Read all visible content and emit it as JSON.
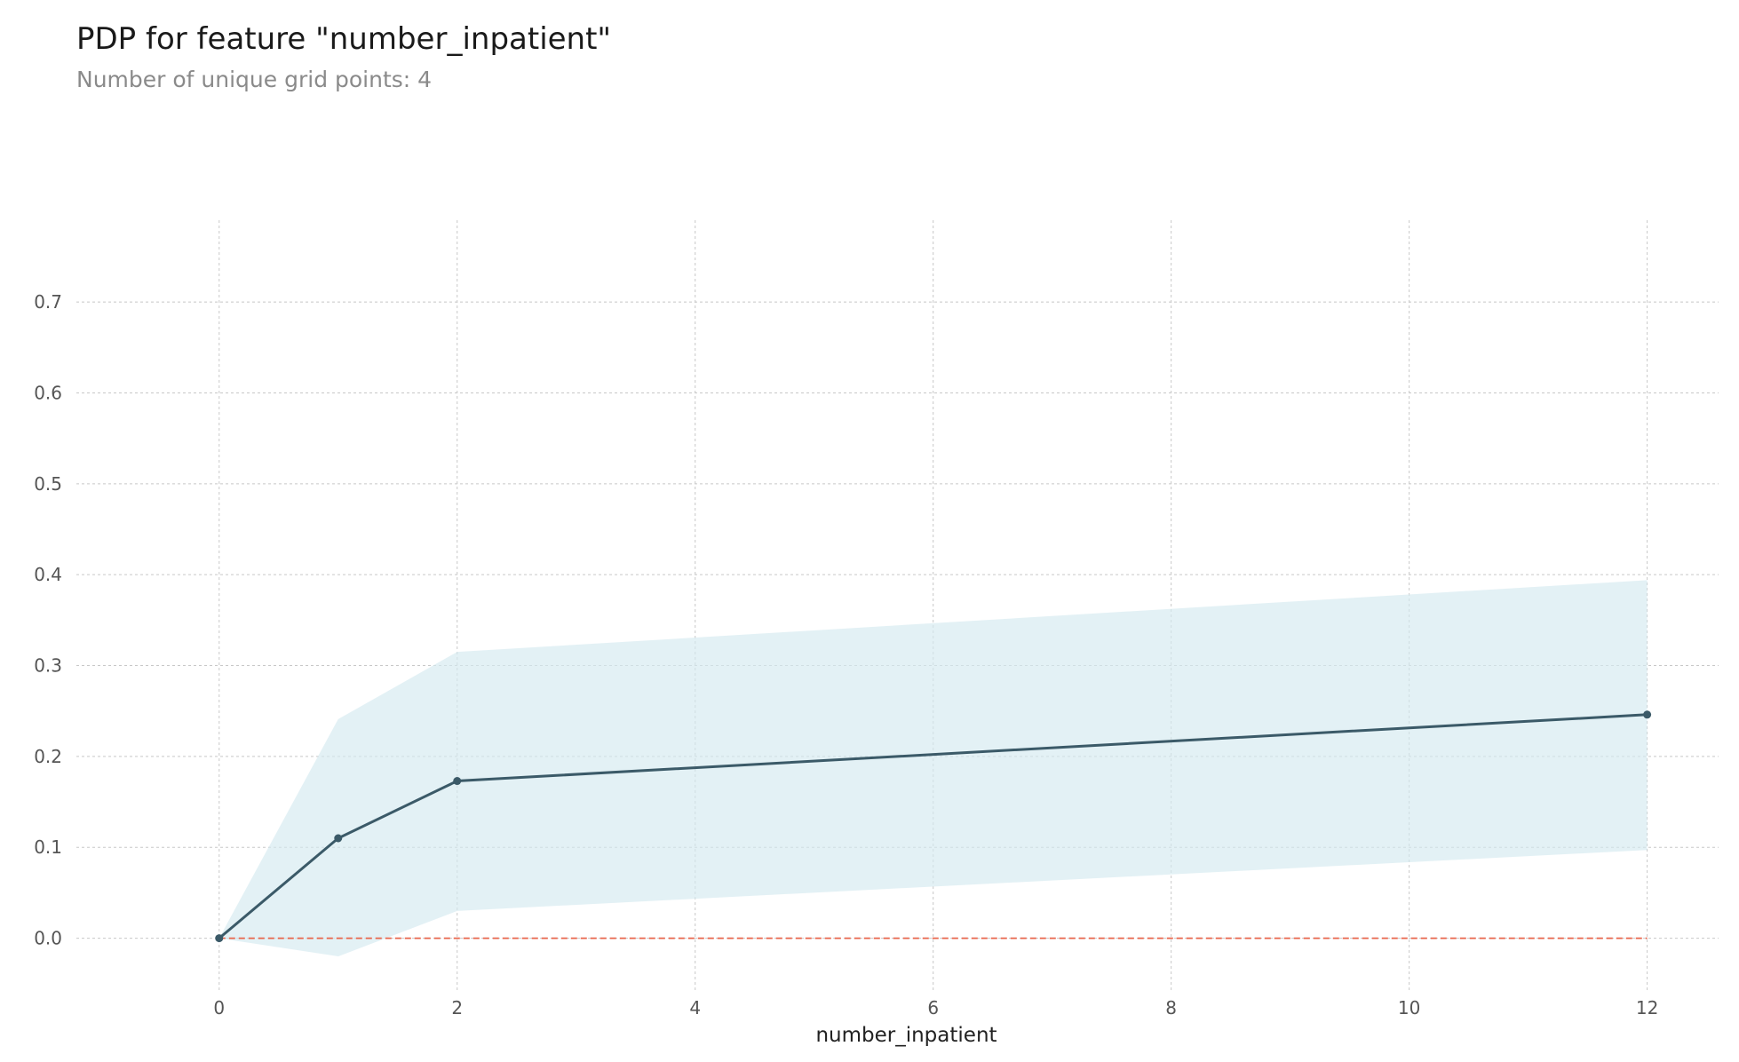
{
  "chart_data": {
    "type": "line",
    "title": "PDP for feature \"number_inpatient\"",
    "subtitle": "Number of unique grid points: 4",
    "xlabel": "number_inpatient",
    "ylabel": "",
    "xlim": [
      -1.2,
      12.6
    ],
    "ylim": [
      -0.06,
      0.79
    ],
    "xticks": [
      0,
      2,
      4,
      6,
      8,
      10,
      12
    ],
    "yticks": [
      0.0,
      0.1,
      0.2,
      0.3,
      0.4,
      0.5,
      0.6,
      0.7
    ],
    "xtick_labels": [
      "0",
      "2",
      "4",
      "6",
      "8",
      "10",
      "12"
    ],
    "ytick_labels": [
      "0.0",
      "0.1",
      "0.2",
      "0.3",
      "0.4",
      "0.5",
      "0.6",
      "0.7"
    ],
    "grid": true,
    "series": [
      {
        "x": [
          0,
          1,
          2,
          12
        ],
        "values": [
          0.0,
          0.11,
          0.173,
          0.246
        ],
        "upper": [
          0.0,
          0.241,
          0.315,
          0.394
        ],
        "lower": [
          0.0,
          -0.02,
          0.03,
          0.097
        ]
      }
    ],
    "reference_line": {
      "y": 0.0,
      "color": "#e8654b",
      "style": "dashed"
    },
    "colors": {
      "line": "#3b5a68",
      "band": "#d4eaf0",
      "grid": "#c8c8c8"
    }
  }
}
